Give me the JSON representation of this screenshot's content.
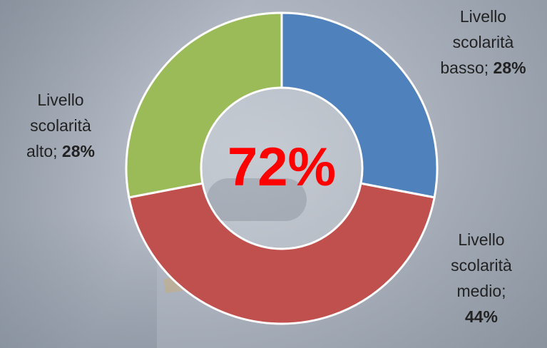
{
  "chart_data": {
    "type": "pie",
    "donut": true,
    "center_label": "72%",
    "slices": [
      {
        "label": "Livello scolarità basso",
        "value": 28,
        "display": "28%",
        "color": "#4f81bd"
      },
      {
        "label": "Livello scolarità medio",
        "value": 44,
        "display": "44%",
        "color": "#c0504d"
      },
      {
        "label": "Livello scolarità alto",
        "value": 28,
        "display": "28%",
        "color": "#9bbb59"
      }
    ]
  },
  "labels": {
    "basso": {
      "line1": "Livello",
      "line2": "scolarità",
      "line3": "basso;",
      "pct": "28%"
    },
    "alto": {
      "line1": "Livello",
      "line2": "scolarità",
      "line3": "alto;",
      "pct": "28%"
    },
    "medio": {
      "line1": "Livello",
      "line2": "scolarità",
      "line3": "medio;",
      "pct": "44%"
    }
  }
}
